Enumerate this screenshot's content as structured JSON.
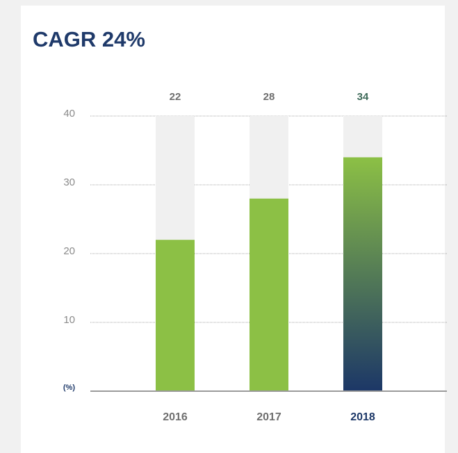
{
  "chart_data": {
    "type": "bar",
    "title": "CAGR 24%",
    "y_label": "(%)",
    "categories": [
      "2016",
      "2017",
      "2018"
    ],
    "values": [
      22,
      28,
      34
    ],
    "color": "#8cc045",
    "highlight": "2018",
    "highlight_color": "#1c3767",
    "ylim": [
      0,
      40
    ],
    "yticks": [
      10,
      20,
      30,
      40
    ],
    "grid": true
  }
}
